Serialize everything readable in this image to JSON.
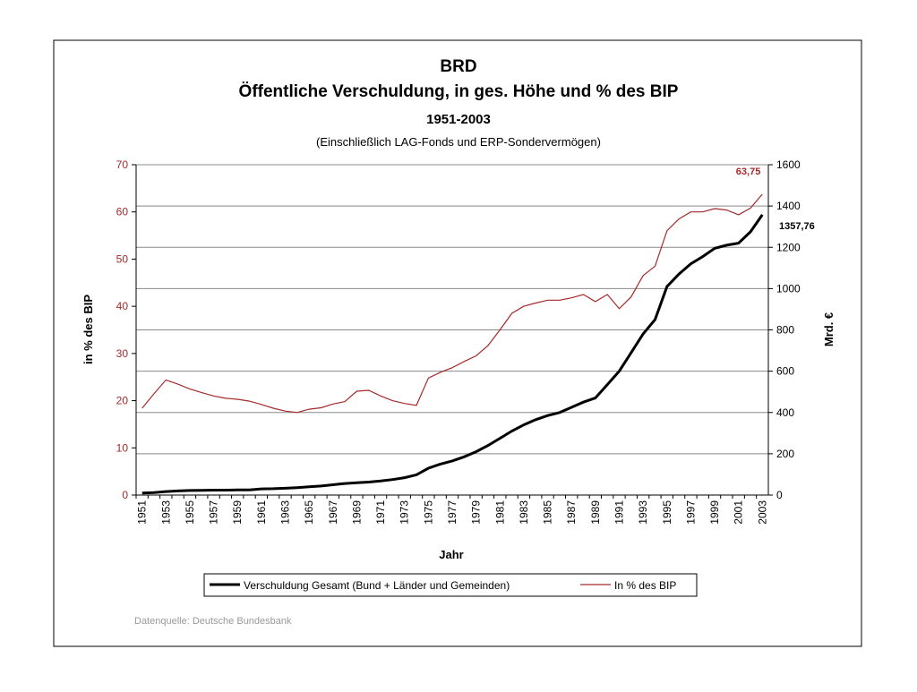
{
  "chart_data": {
    "type": "line",
    "title": "BRD",
    "subtitle": "Öffentliche Verschuldung, in ges. Höhe und % des BIP",
    "period": "1951-2003",
    "note": "(Einschließlich LAG-Fonds und ERP-Sondervermögen)",
    "x_label": "Jahr",
    "y_label": "in % des BIP",
    "y2_label": "Mrd. €",
    "source": "Datenquelle: Deutsche Bundesbank",
    "categories": [
      "1951",
      "1952",
      "1953",
      "1954",
      "1955",
      "1956",
      "1957",
      "1958",
      "1959",
      "1960",
      "1961",
      "1962",
      "1963",
      "1964",
      "1965",
      "1966",
      "1967",
      "1968",
      "1969",
      "1970",
      "1971",
      "1972",
      "1973",
      "1974",
      "1975",
      "1976",
      "1977",
      "1978",
      "1979",
      "1980",
      "1981",
      "1982",
      "1983",
      "1984",
      "1985",
      "1986",
      "1987",
      "1988",
      "1989",
      "1990",
      "1991",
      "1992",
      "1993",
      "1994",
      "1995",
      "1996",
      "1997",
      "1998",
      "1999",
      "2000",
      "2001",
      "2002",
      "2003"
    ],
    "ylim": [
      0,
      70
    ],
    "yticks": [
      0,
      10,
      20,
      30,
      40,
      50,
      60,
      70
    ],
    "y2lim": [
      0,
      1600
    ],
    "y2ticks": [
      0,
      200,
      400,
      600,
      800,
      1000,
      1200,
      1400,
      1600
    ],
    "grid": true,
    "series": [
      {
        "name": "Verschuldung Gesamt (Bund + Länder und Gemeinden)",
        "color": "#000000",
        "axis": "y2",
        "values": [
          10,
          12,
          17,
          20,
          22,
          23,
          24,
          24,
          25,
          25,
          30,
          31,
          33,
          36,
          40,
          44,
          50,
          56,
          60,
          63,
          68,
          75,
          84,
          98,
          130,
          150,
          165,
          185,
          210,
          240,
          275,
          310,
          340,
          365,
          385,
          400,
          425,
          450,
          470,
          535,
          600,
          690,
          780,
          850,
          1010,
          1070,
          1120,
          1155,
          1195,
          1210,
          1220,
          1275,
          1357.76
        ],
        "value_labels": [
          null,
          null,
          null,
          null,
          null,
          null,
          null,
          null,
          null,
          null,
          null,
          null,
          null,
          null,
          null,
          null,
          null,
          null,
          null,
          null,
          null,
          null,
          null,
          null,
          null,
          null,
          null,
          null,
          null,
          null,
          null,
          null,
          null,
          null,
          null,
          null,
          null,
          null,
          null,
          null,
          null,
          null,
          null,
          null,
          null,
          null,
          null,
          null,
          null,
          null,
          null,
          null,
          "1357,76"
        ]
      },
      {
        "name": "In % des BIP",
        "color": "#a52a2a",
        "axis": "y",
        "values": [
          18.4,
          21.5,
          24.4,
          23.5,
          22.5,
          21.7,
          21.0,
          20.5,
          20.3,
          19.9,
          19.2,
          18.4,
          17.8,
          17.5,
          18.2,
          18.5,
          19.3,
          19.8,
          22.0,
          22.2,
          21.0,
          20.0,
          19.4,
          19.0,
          24.8,
          26.0,
          27.0,
          28.3,
          29.5,
          31.7,
          35.0,
          38.5,
          40.0,
          40.7,
          41.3,
          41.3,
          41.8,
          42.5,
          41.0,
          42.5,
          39.5,
          42.0,
          46.5,
          48.5,
          56.0,
          58.5,
          60.0,
          60.0,
          60.7,
          60.4,
          59.4,
          60.8,
          63.75
        ],
        "value_labels": [
          null,
          null,
          null,
          null,
          null,
          null,
          null,
          null,
          null,
          null,
          null,
          null,
          null,
          null,
          null,
          null,
          null,
          null,
          null,
          null,
          null,
          null,
          null,
          null,
          null,
          null,
          null,
          null,
          null,
          null,
          null,
          null,
          null,
          null,
          null,
          null,
          null,
          null,
          null,
          null,
          null,
          null,
          null,
          null,
          null,
          null,
          null,
          null,
          null,
          null,
          null,
          null,
          "63,75"
        ]
      }
    ]
  }
}
